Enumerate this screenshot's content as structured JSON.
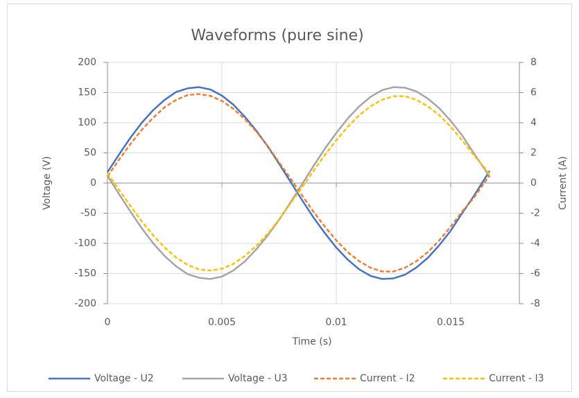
{
  "chart_data": {
    "type": "line",
    "title": "Waveforms (pure sine)",
    "x_label": "Time (s)",
    "y_label": "Voltage (V)",
    "y2_label": "Current (A)",
    "x": [
      0,
      0.0005,
      0.001,
      0.0015,
      0.002,
      0.0025,
      0.003,
      0.0035,
      0.004,
      0.0045,
      0.005,
      0.0055,
      0.006,
      0.0065,
      0.007,
      0.0075,
      0.008,
      0.0085,
      0.009,
      0.0095,
      0.01,
      0.0105,
      0.011,
      0.0115,
      0.012,
      0.0125,
      0.013,
      0.0135,
      0.014,
      0.0145,
      0.015,
      0.0155,
      0.016,
      0.0165,
      0.0167
    ],
    "xlim": [
      0,
      0.018
    ],
    "xticks": [
      0,
      0.005,
      0.01,
      0.015
    ],
    "ylim": [
      -200,
      200
    ],
    "yticks": [
      -200,
      -150,
      -100,
      -50,
      0,
      50,
      100,
      150,
      200
    ],
    "y2lim": [
      -8,
      8
    ],
    "y2ticks": [
      -8,
      -6,
      -4,
      -2,
      0,
      2,
      4,
      6,
      8
    ],
    "grid": true,
    "legend": "bottom",
    "series": [
      {
        "name": "Voltage - U2",
        "color": "#4472c4",
        "dashed": false,
        "values": [
          18,
          47,
          75,
          100,
          121,
          138,
          151,
          157,
          159,
          155,
          145,
          130,
          110,
          87,
          61,
          32,
          2,
          -28,
          -57,
          -83,
          -107,
          -127,
          -143,
          -154,
          -159,
          -158,
          -152,
          -140,
          -124,
          -103,
          -79,
          -50,
          -22,
          8,
          20
        ]
      },
      {
        "name": "Voltage - U3",
        "color": "#a5a5a5",
        "dashed": false,
        "values": [
          12,
          -18,
          -47,
          -75,
          -100,
          -121,
          -138,
          -151,
          -157,
          -159,
          -155,
          -145,
          -130,
          -110,
          -87,
          -61,
          -32,
          -2,
          28,
          57,
          83,
          107,
          127,
          143,
          154,
          159,
          158,
          152,
          140,
          124,
          103,
          79,
          50,
          22,
          10
        ]
      },
      {
        "name": "Current - I2",
        "color": "#ed7d31",
        "dashed": true,
        "axis": "y2",
        "values": [
          0.44,
          1.54,
          2.58,
          3.53,
          4.33,
          5.03,
          5.51,
          5.83,
          5.9,
          5.78,
          5.45,
          4.92,
          4.25,
          3.42,
          2.46,
          1.37,
          0.3,
          -0.81,
          -1.89,
          -2.89,
          -3.8,
          -4.58,
          -5.18,
          -5.62,
          -5.86,
          -5.86,
          -5.62,
          -5.18,
          -4.58,
          -3.8,
          -2.89,
          -1.89,
          -1,
          0.08,
          0.52
        ]
      },
      {
        "name": "Current - I3",
        "color": "#ffc000",
        "dashed": true,
        "axis": "y2",
        "values": [
          0.66,
          -0.44,
          -1.51,
          -2.54,
          -3.47,
          -4.28,
          -4.94,
          -5.42,
          -5.73,
          -5.8,
          -5.68,
          -5.36,
          -4.84,
          -4.18,
          -3.36,
          -2.42,
          -1.35,
          -0.29,
          0.8,
          1.86,
          2.84,
          3.73,
          4.5,
          5.09,
          5.52,
          5.76,
          5.76,
          5.52,
          5.09,
          4.5,
          3.73,
          2.84,
          1.86,
          0.98,
          0.58
        ]
      }
    ]
  }
}
